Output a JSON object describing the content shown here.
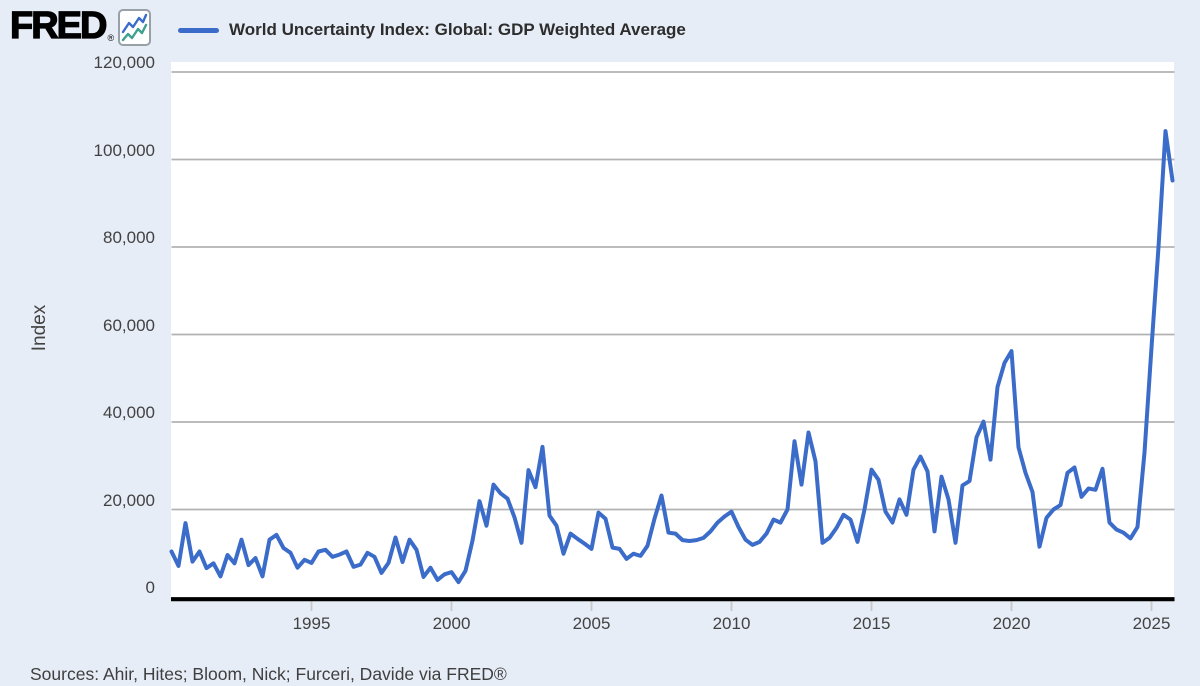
{
  "header": {
    "logo_text": "FRED",
    "logo_registered_mark": "®",
    "legend_label": "World Uncertainty Index: Global: GDP Weighted Average"
  },
  "y_axis": {
    "title": "Index",
    "tick_labels": [
      "120,000",
      "100,000",
      "80,000",
      "60,000",
      "40,000",
      "20,000",
      "0"
    ]
  },
  "x_axis": {
    "tick_labels": [
      "1995",
      "2000",
      "2005",
      "2010",
      "2015",
      "2020",
      "2025"
    ]
  },
  "footer": {
    "sources": "Sources: Ahir, Hites; Bloom, Nick; Furceri, Davide via FRED®"
  },
  "colors": {
    "background": "#e7edf7",
    "plot_background": "#ffffff",
    "gridline": "#b2b2b2",
    "axis_line": "#000000",
    "line": "#3b6cc9",
    "logo_icon_blue": "#3b6cc9",
    "logo_icon_teal": "#3fa08f",
    "legend_text": "#2d2d2d",
    "axis_text": "#424242"
  },
  "chart_data": {
    "type": "line",
    "title": "World Uncertainty Index: Global: GDP Weighted Average",
    "xlabel": "",
    "ylabel": "Index",
    "frequency": "quarterly",
    "x_start": "1990 Q1",
    "x_end": "2025 Q4",
    "ylim": [
      0,
      120000
    ],
    "y_ticks": [
      0,
      20000,
      40000,
      60000,
      80000,
      100000,
      120000
    ],
    "x_ticks": [
      1995,
      2000,
      2005,
      2010,
      2015,
      2020,
      2025
    ],
    "grid": "horizontal",
    "legend_position": "top-left",
    "values": [
      10400,
      7100,
      16900,
      8100,
      10400,
      6600,
      7700,
      4700,
      9600,
      7700,
      13100,
      7300,
      8900,
      4700,
      13100,
      14200,
      11200,
      10100,
      6700,
      8500,
      7800,
      10400,
      10800,
      9200,
      9700,
      10400,
      6900,
      7400,
      10100,
      9200,
      5500,
      7800,
      13600,
      8000,
      13100,
      10800,
      4600,
      6700,
      3900,
      5200,
      5700,
      3400,
      6000,
      12900,
      21900,
      16300,
      25700,
      23700,
      22500,
      18200,
      12400,
      29000,
      25100,
      34300,
      18600,
      16300,
      9900,
      14500,
      13300,
      12200,
      11000,
      19300,
      17900,
      11300,
      11000,
      8700,
      9900,
      9400,
      11700,
      17900,
      23200,
      14700,
      14500,
      13000,
      12800,
      13000,
      13500,
      15000,
      17000,
      18400,
      19500,
      16000,
      13100,
      11900,
      12600,
      14500,
      17700,
      17000,
      20000,
      35600,
      25700,
      37600,
      31000,
      12400,
      13500,
      15800,
      18800,
      17700,
      12600,
      20000,
      29100,
      26800,
      19500,
      17000,
      22300,
      18800,
      29100,
      32100,
      28700,
      15000,
      27500,
      22300,
      12400,
      25500,
      26500,
      36500,
      40100,
      31400,
      48000,
      53500,
      56200,
      34200,
      28400,
      24000,
      11500,
      18100,
      20000,
      21000,
      28400,
      29600,
      22900,
      24800,
      24500,
      29300,
      17000,
      15400,
      14700,
      13400,
      16000,
      33000,
      57000,
      80000,
      106500,
      95200
    ]
  }
}
